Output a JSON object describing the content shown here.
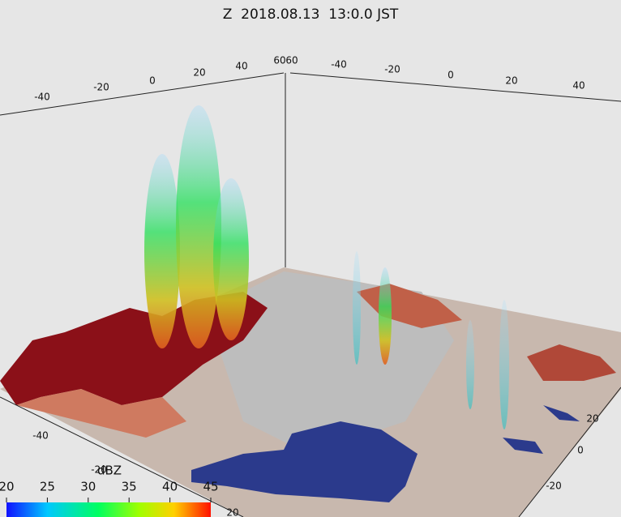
{
  "title": "Z  2018.08.13  13:0.0 JST",
  "axes": {
    "back_left": [
      -40,
      -20,
      0,
      20,
      40,
      60
    ],
    "back_right": [
      60,
      -40,
      -20,
      0,
      20,
      40
    ],
    "front_right": [
      20,
      0,
      -20
    ],
    "front_left": [
      -40,
      -20,
      20
    ]
  },
  "colorbar": {
    "label": "dBZ",
    "ticks": [
      20,
      25,
      30,
      35,
      40,
      45
    ]
  }
}
